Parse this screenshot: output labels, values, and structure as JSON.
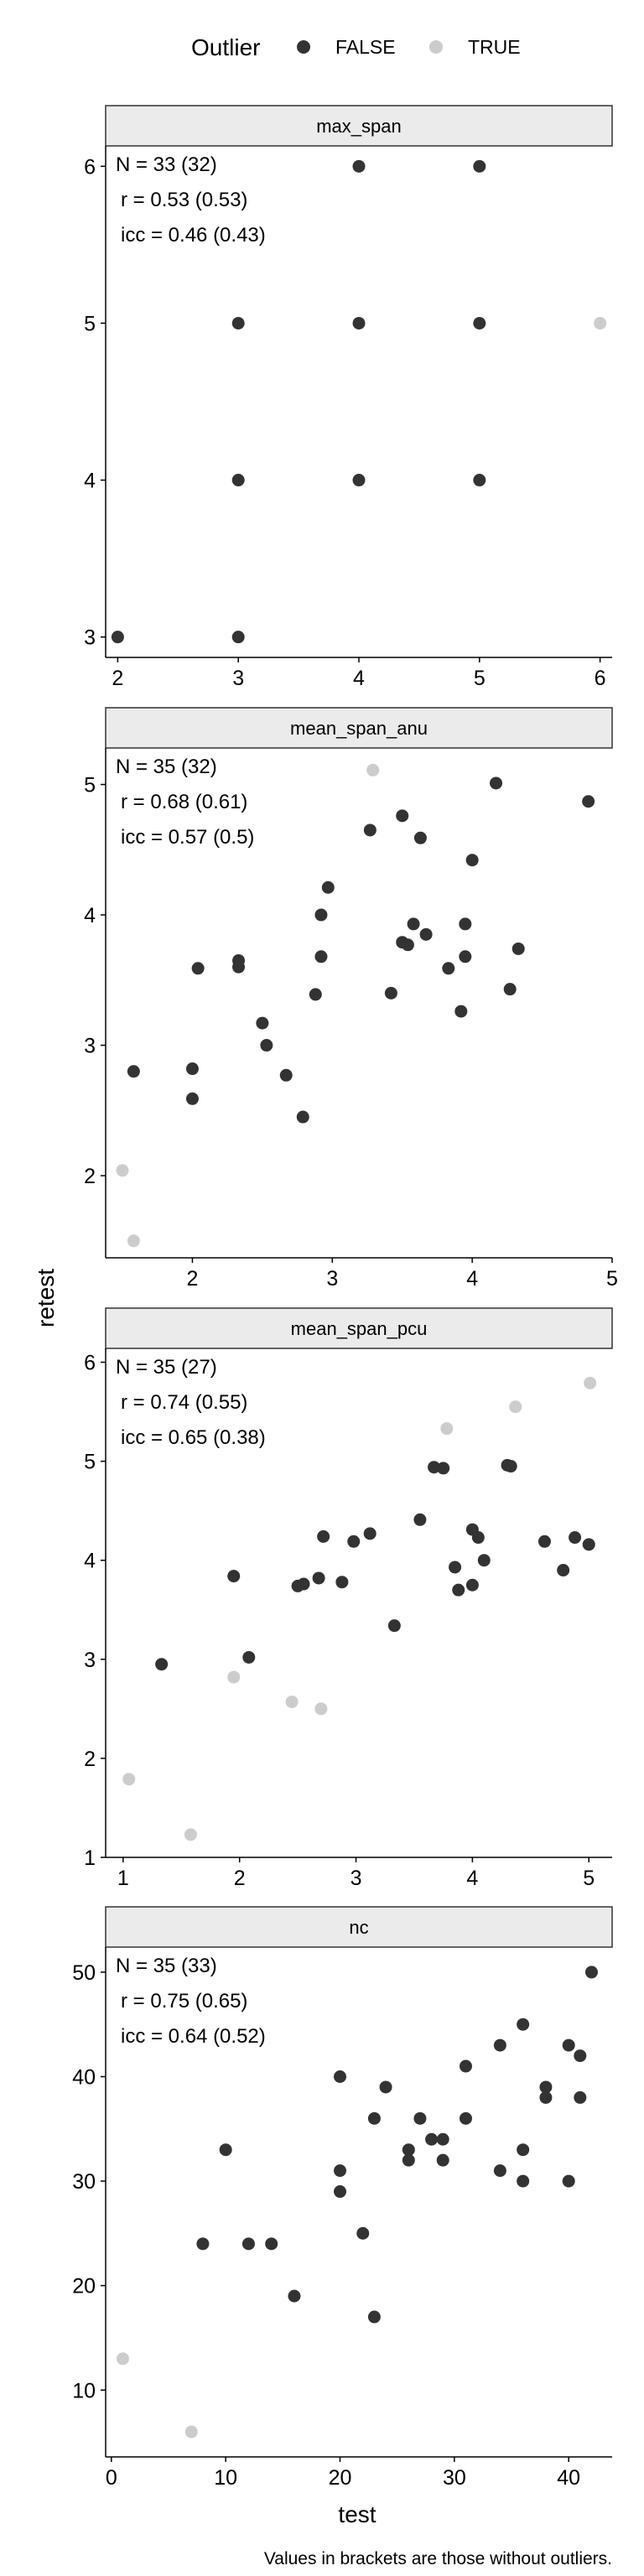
{
  "legend": {
    "title": "Outlier",
    "items": [
      {
        "label": "FALSE",
        "color": "#333333"
      },
      {
        "label": "TRUE",
        "color": "#cccccc"
      }
    ]
  },
  "axis": {
    "xlabel": "test",
    "ylabel": "retest"
  },
  "caption": "Values in brackets are those without outliers.",
  "chart_data": [
    {
      "type": "scatter",
      "title": "max_span",
      "annotations": [
        "N = 33 (32)",
        "r = 0.53 (0.53)",
        "icc = 0.46 (0.43)"
      ],
      "xlim": [
        1.9,
        6.1
      ],
      "ylim": [
        2.87,
        6.13
      ],
      "xticks": [
        2,
        3,
        4,
        5,
        6
      ],
      "yticks": [
        3,
        4,
        5,
        6
      ],
      "points": [
        [
          2,
          3,
          false
        ],
        [
          3,
          3,
          false
        ],
        [
          3,
          4,
          false
        ],
        [
          3,
          5,
          false
        ],
        [
          4,
          4,
          false
        ],
        [
          4,
          5,
          false
        ],
        [
          4,
          6,
          false
        ],
        [
          5,
          4,
          false
        ],
        [
          5,
          5,
          false
        ],
        [
          5,
          6,
          false
        ],
        [
          6,
          5,
          true
        ]
      ]
    },
    {
      "type": "scatter",
      "title": "mean_span_anu",
      "annotations": [
        "N = 35 (32)",
        "r = 0.68 (0.61)",
        "icc = 0.57 (0.5)"
      ],
      "xlim": [
        1.38,
        5.0
      ],
      "ylim": [
        1.37,
        5.28
      ],
      "xticks": [
        2,
        3,
        4,
        5
      ],
      "yticks": [
        2,
        3,
        4,
        5
      ],
      "points": [
        [
          1.5,
          2.04,
          true
        ],
        [
          1.58,
          1.5,
          true
        ],
        [
          1.58,
          2.8,
          false
        ],
        [
          2.0,
          2.59,
          false
        ],
        [
          2.0,
          2.82,
          false
        ],
        [
          2.04,
          3.59,
          false
        ],
        [
          2.33,
          3.65,
          false
        ],
        [
          2.33,
          3.6,
          false
        ],
        [
          2.5,
          3.17,
          false
        ],
        [
          2.53,
          3.0,
          false
        ],
        [
          2.67,
          2.77,
          false
        ],
        [
          2.79,
          2.45,
          false
        ],
        [
          2.88,
          3.39,
          false
        ],
        [
          2.92,
          3.68,
          false
        ],
        [
          2.92,
          4.0,
          false
        ],
        [
          2.97,
          4.21,
          false
        ],
        [
          3.27,
          4.65,
          false
        ],
        [
          3.29,
          5.11,
          true
        ],
        [
          3.42,
          3.4,
          false
        ],
        [
          3.5,
          4.76,
          false
        ],
        [
          3.5,
          3.79,
          false
        ],
        [
          3.54,
          3.77,
          false
        ],
        [
          3.58,
          3.93,
          false
        ],
        [
          3.63,
          4.59,
          false
        ],
        [
          3.67,
          3.85,
          false
        ],
        [
          3.83,
          3.59,
          false
        ],
        [
          3.92,
          3.26,
          false
        ],
        [
          3.95,
          3.68,
          false
        ],
        [
          3.95,
          3.93,
          false
        ],
        [
          4.0,
          4.42,
          false
        ],
        [
          4.17,
          5.01,
          false
        ],
        [
          4.27,
          3.43,
          false
        ],
        [
          4.33,
          3.74,
          false
        ],
        [
          4.83,
          4.87,
          false
        ]
      ]
    },
    {
      "type": "scatter",
      "title": "mean_span_pcu",
      "annotations": [
        "N = 35 (27)",
        "r = 0.74 (0.55)",
        "icc = 0.65 (0.38)"
      ],
      "xlim": [
        0.85,
        5.2
      ],
      "ylim": [
        1.0,
        6.14
      ],
      "xticks": [
        1,
        2,
        3,
        4,
        5
      ],
      "yticks": [
        1,
        2,
        3,
        4,
        5,
        6
      ],
      "points": [
        [
          1.05,
          1.79,
          true
        ],
        [
          1.33,
          2.95,
          false
        ],
        [
          1.58,
          1.23,
          true
        ],
        [
          1.95,
          3.84,
          false
        ],
        [
          1.95,
          2.82,
          true
        ],
        [
          2.08,
          3.02,
          false
        ],
        [
          2.45,
          2.57,
          true
        ],
        [
          2.5,
          3.74,
          false
        ],
        [
          2.55,
          3.76,
          false
        ],
        [
          2.68,
          3.82,
          false
        ],
        [
          2.7,
          2.5,
          true
        ],
        [
          2.72,
          4.24,
          false
        ],
        [
          2.88,
          3.78,
          false
        ],
        [
          2.98,
          4.19,
          false
        ],
        [
          3.12,
          4.27,
          false
        ],
        [
          3.33,
          3.34,
          false
        ],
        [
          3.55,
          4.41,
          false
        ],
        [
          3.67,
          4.94,
          false
        ],
        [
          3.75,
          4.93,
          false
        ],
        [
          3.78,
          5.33,
          true
        ],
        [
          3.85,
          3.93,
          false
        ],
        [
          3.88,
          3.7,
          false
        ],
        [
          4.0,
          4.31,
          false
        ],
        [
          4.0,
          3.75,
          false
        ],
        [
          4.05,
          4.23,
          false
        ],
        [
          4.1,
          4.0,
          false
        ],
        [
          4.3,
          4.96,
          false
        ],
        [
          4.33,
          4.95,
          false
        ],
        [
          4.37,
          5.55,
          true
        ],
        [
          4.62,
          4.19,
          false
        ],
        [
          4.78,
          3.9,
          false
        ],
        [
          4.88,
          4.23,
          false
        ],
        [
          5.0,
          4.16,
          false
        ],
        [
          5.01,
          5.79,
          true
        ]
      ]
    },
    {
      "type": "scatter",
      "title": "nc",
      "annotations": [
        "N = 35 (33)",
        "r = 0.75 (0.65)",
        "icc = 0.64 (0.52)"
      ],
      "xlim": [
        -0.5,
        43.8
      ],
      "ylim": [
        3.6,
        52.4
      ],
      "xticks": [
        0,
        10,
        20,
        30,
        40
      ],
      "yticks": [
        10,
        20,
        30,
        40,
        50
      ],
      "points": [
        [
          1,
          13,
          true
        ],
        [
          7,
          6,
          true
        ],
        [
          8,
          24,
          false
        ],
        [
          10,
          33,
          false
        ],
        [
          12,
          24,
          false
        ],
        [
          14,
          24,
          false
        ],
        [
          16,
          19,
          false
        ],
        [
          20,
          40,
          false
        ],
        [
          20,
          31,
          false
        ],
        [
          20,
          29,
          false
        ],
        [
          22,
          25,
          false
        ],
        [
          23,
          36,
          false
        ],
        [
          23,
          17,
          false
        ],
        [
          24,
          39,
          false
        ],
        [
          26,
          33,
          false
        ],
        [
          26,
          32,
          false
        ],
        [
          27,
          36,
          false
        ],
        [
          28,
          34,
          false
        ],
        [
          29,
          34,
          false
        ],
        [
          29,
          32,
          false
        ],
        [
          31,
          41,
          false
        ],
        [
          31,
          36,
          false
        ],
        [
          34,
          43,
          false
        ],
        [
          34,
          31,
          false
        ],
        [
          36,
          45,
          false
        ],
        [
          36,
          33,
          false
        ],
        [
          36,
          30,
          false
        ],
        [
          38,
          39,
          false
        ],
        [
          38,
          38,
          false
        ],
        [
          40,
          43,
          false
        ],
        [
          40,
          30,
          false
        ],
        [
          41,
          42,
          false
        ],
        [
          41,
          38,
          false
        ],
        [
          42,
          50,
          false
        ]
      ]
    }
  ]
}
